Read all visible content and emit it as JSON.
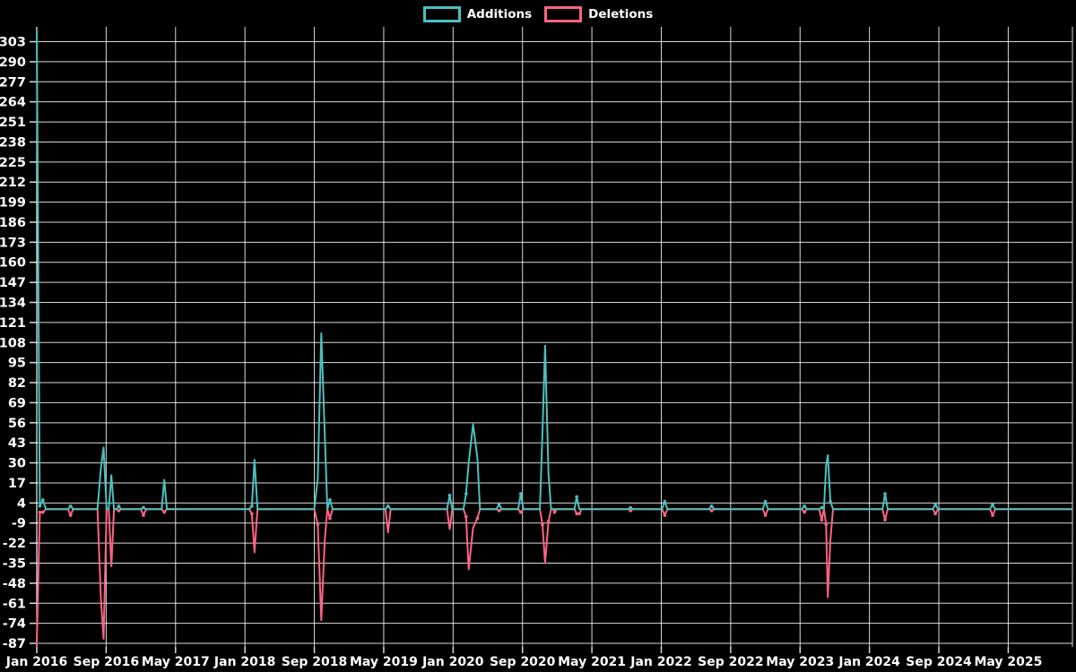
{
  "page": {
    "background": "#000000",
    "text_color": "#ffffff"
  },
  "legend": {
    "items": [
      {
        "label": "Additions",
        "color": "#4bc0c0"
      },
      {
        "label": "Deletions",
        "color": "#ff6384"
      }
    ]
  },
  "chart_data": {
    "type": "line",
    "title": "",
    "xlabel": "",
    "ylabel": "",
    "legend_position": "top",
    "grid": true,
    "grid_color": "rgba(255,255,255,0.85)",
    "background": "#000000",
    "x_axis": {
      "unit": "months since Jan 2016",
      "tick_labels": [
        "Jan 2016",
        "Sep 2016",
        "May 2017",
        "Jan 2018",
        "Sep 2018",
        "May 2019",
        "Jan 2020",
        "Sep 2020",
        "May 2021",
        "Jan 2022",
        "Sep 2022",
        "May 2023",
        "Jan 2024",
        "Sep 2024",
        "May 2025"
      ],
      "tick_months": [
        0,
        8,
        16,
        24,
        32,
        40,
        48,
        56,
        64,
        72,
        80,
        88,
        96,
        104,
        112
      ],
      "min_month": 0,
      "max_month": 119.4
    },
    "y_axis": {
      "ticks": [
        303,
        290,
        277,
        264,
        251,
        238,
        225,
        212,
        199,
        186,
        173,
        160,
        147,
        134,
        121,
        108,
        95,
        82,
        69,
        56,
        43,
        30,
        17,
        4,
        -9,
        -22,
        -35,
        -48,
        -61,
        -74,
        -87
      ],
      "min": -89.3,
      "max": 312.6
    },
    "series": [
      {
        "name": "Additions",
        "color": "#4bc0c0",
        "points": [
          [
            0,
            310
          ],
          [
            0.35,
            2
          ],
          [
            0.7,
            6
          ],
          [
            1.05,
            0
          ],
          [
            3.6,
            0
          ],
          [
            3.9,
            2
          ],
          [
            4.2,
            0
          ],
          [
            7.0,
            0
          ],
          [
            7.4,
            27
          ],
          [
            7.7,
            40
          ],
          [
            8.05,
            0
          ],
          [
            8.3,
            0
          ],
          [
            8.6,
            22
          ],
          [
            8.9,
            0
          ],
          [
            9.2,
            0
          ],
          [
            9.45,
            2
          ],
          [
            9.7,
            0
          ],
          [
            12.0,
            0
          ],
          [
            12.3,
            1
          ],
          [
            12.6,
            0
          ],
          [
            14.4,
            0
          ],
          [
            14.7,
            19
          ],
          [
            15.0,
            0
          ],
          [
            24.5,
            0
          ],
          [
            24.8,
            2
          ],
          [
            25.1,
            32
          ],
          [
            25.45,
            0
          ],
          [
            32.0,
            0
          ],
          [
            32.4,
            20
          ],
          [
            32.8,
            114
          ],
          [
            33.2,
            48
          ],
          [
            33.5,
            0
          ],
          [
            33.8,
            6
          ],
          [
            34.1,
            0
          ],
          [
            40.2,
            0
          ],
          [
            40.5,
            2
          ],
          [
            40.8,
            0
          ],
          [
            47.3,
            0
          ],
          [
            47.6,
            9
          ],
          [
            47.9,
            0
          ],
          [
            49.2,
            0
          ],
          [
            49.5,
            10
          ],
          [
            49.8,
            30
          ],
          [
            50.3,
            55
          ],
          [
            50.8,
            33
          ],
          [
            51.1,
            0
          ],
          [
            53.0,
            0
          ],
          [
            53.3,
            3
          ],
          [
            53.6,
            0
          ],
          [
            55.5,
            0
          ],
          [
            55.8,
            10
          ],
          [
            56.1,
            0
          ],
          [
            58.0,
            0
          ],
          [
            58.3,
            50
          ],
          [
            58.6,
            106
          ],
          [
            59.0,
            23
          ],
          [
            59.3,
            0
          ],
          [
            62.0,
            0
          ],
          [
            62.25,
            8
          ],
          [
            62.55,
            0
          ],
          [
            68.2,
            0
          ],
          [
            68.45,
            1
          ],
          [
            68.7,
            0
          ],
          [
            72.1,
            0
          ],
          [
            72.4,
            5
          ],
          [
            72.7,
            0
          ],
          [
            77.5,
            0
          ],
          [
            77.8,
            2
          ],
          [
            78.1,
            0
          ],
          [
            83.7,
            0
          ],
          [
            84.0,
            5
          ],
          [
            84.3,
            0
          ],
          [
            88.2,
            0
          ],
          [
            88.5,
            2
          ],
          [
            88.8,
            0
          ],
          [
            90.2,
            0
          ],
          [
            90.5,
            1
          ],
          [
            90.75,
            0
          ],
          [
            91.0,
            28
          ],
          [
            91.2,
            35
          ],
          [
            91.5,
            5
          ],
          [
            91.8,
            0
          ],
          [
            97.5,
            0
          ],
          [
            97.8,
            10
          ],
          [
            98.1,
            0
          ],
          [
            103.3,
            0
          ],
          [
            103.6,
            3
          ],
          [
            103.9,
            0
          ],
          [
            109.9,
            0
          ],
          [
            110.2,
            3
          ],
          [
            110.5,
            0
          ],
          [
            119.4,
            0
          ]
        ]
      },
      {
        "name": "Deletions",
        "color": "#ff6384",
        "points": [
          [
            0,
            -88
          ],
          [
            0.35,
            -2
          ],
          [
            0.7,
            -2
          ],
          [
            1.05,
            0
          ],
          [
            3.6,
            0
          ],
          [
            3.9,
            -4
          ],
          [
            4.2,
            0
          ],
          [
            7.0,
            0
          ],
          [
            7.4,
            -59
          ],
          [
            7.7,
            -84
          ],
          [
            8.05,
            0
          ],
          [
            8.3,
            0
          ],
          [
            8.6,
            -37
          ],
          [
            8.9,
            0
          ],
          [
            9.2,
            0
          ],
          [
            9.45,
            -1
          ],
          [
            9.7,
            0
          ],
          [
            12.0,
            0
          ],
          [
            12.3,
            -4
          ],
          [
            12.6,
            0
          ],
          [
            14.4,
            0
          ],
          [
            14.7,
            -2
          ],
          [
            15.0,
            0
          ],
          [
            24.5,
            0
          ],
          [
            24.8,
            -3
          ],
          [
            25.1,
            -28
          ],
          [
            25.45,
            0
          ],
          [
            32.0,
            0
          ],
          [
            32.4,
            -10
          ],
          [
            32.8,
            -72
          ],
          [
            33.2,
            -20
          ],
          [
            33.5,
            0
          ],
          [
            33.8,
            -6
          ],
          [
            34.1,
            0
          ],
          [
            40.2,
            0
          ],
          [
            40.5,
            -15
          ],
          [
            40.8,
            0
          ],
          [
            47.3,
            0
          ],
          [
            47.6,
            -13
          ],
          [
            47.9,
            0
          ],
          [
            49.2,
            0
          ],
          [
            49.5,
            -5
          ],
          [
            49.8,
            -39
          ],
          [
            50.3,
            -12
          ],
          [
            50.8,
            -6
          ],
          [
            51.1,
            0
          ],
          [
            53.0,
            0
          ],
          [
            53.3,
            -1
          ],
          [
            53.6,
            0
          ],
          [
            55.5,
            0
          ],
          [
            55.8,
            -2
          ],
          [
            56.1,
            0
          ],
          [
            58.0,
            0
          ],
          [
            58.3,
            -10
          ],
          [
            58.6,
            -35
          ],
          [
            59.0,
            -8
          ],
          [
            59.3,
            0
          ],
          [
            59.5,
            0
          ],
          [
            59.7,
            -2
          ],
          [
            59.95,
            0
          ],
          [
            62.0,
            0
          ],
          [
            62.25,
            -3
          ],
          [
            62.55,
            -3
          ],
          [
            62.8,
            0
          ],
          [
            68.2,
            0
          ],
          [
            68.45,
            -1
          ],
          [
            68.7,
            0
          ],
          [
            72.1,
            0
          ],
          [
            72.4,
            -4
          ],
          [
            72.7,
            0
          ],
          [
            77.5,
            0
          ],
          [
            77.8,
            -1
          ],
          [
            78.1,
            0
          ],
          [
            83.7,
            0
          ],
          [
            84.0,
            -4
          ],
          [
            84.3,
            0
          ],
          [
            88.2,
            0
          ],
          [
            88.5,
            -2
          ],
          [
            88.8,
            0
          ],
          [
            90.2,
            0
          ],
          [
            90.5,
            -7
          ],
          [
            90.75,
            0
          ],
          [
            91.0,
            -10
          ],
          [
            91.2,
            -57
          ],
          [
            91.5,
            -20
          ],
          [
            91.8,
            0
          ],
          [
            97.5,
            0
          ],
          [
            97.8,
            -7
          ],
          [
            98.1,
            0
          ],
          [
            103.3,
            0
          ],
          [
            103.6,
            -3
          ],
          [
            103.9,
            0
          ],
          [
            109.9,
            0
          ],
          [
            110.2,
            -4
          ],
          [
            110.5,
            0
          ],
          [
            119.4,
            0
          ]
        ]
      }
    ]
  }
}
